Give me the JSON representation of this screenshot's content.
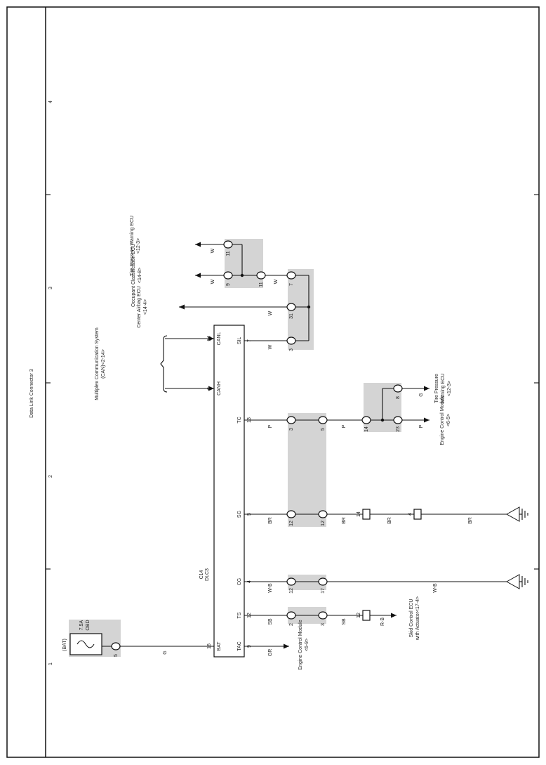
{
  "title": "Data Link Connector 3",
  "zones": [
    "1",
    "2",
    "3",
    "4"
  ],
  "connector": {
    "code": "C14",
    "name": "DLC3"
  },
  "fuse": {
    "source": "(BAT)",
    "rating": "7.5A",
    "name": "OBD"
  },
  "pins": [
    {
      "name": "BAT",
      "number": "16"
    },
    {
      "name": "TAC",
      "number": "9"
    },
    {
      "name": "TS",
      "number": "12"
    },
    {
      "name": "CG",
      "number": "4"
    },
    {
      "name": "SG",
      "number": "5"
    },
    {
      "name": "TC",
      "number": "13"
    },
    {
      "name": "CANH",
      "number": "6"
    },
    {
      "name": "CANL",
      "number": "14"
    },
    {
      "name": "SIL",
      "number": "7"
    }
  ],
  "circuits": [
    {
      "colors": [
        "G"
      ],
      "terminals": [
        "5"
      ]
    },
    {
      "colors": [
        "GR"
      ],
      "destinations": [
        [
          "Engine Control Module",
          "<6-9>"
        ]
      ]
    },
    {
      "colors": [
        "SB",
        "SB",
        "R-B"
      ],
      "terminals": [
        "2",
        "3",
        "12"
      ],
      "destinations": [
        [
          "Skid Control ECU",
          "with Actuator<17-4>"
        ]
      ]
    },
    {
      "colors": [
        "W-B",
        "W-B"
      ],
      "terminals": [
        "12",
        "17"
      ]
    },
    {
      "colors": [
        "BR",
        "BR",
        "BR",
        "BR"
      ],
      "terminals": [
        "12",
        "12",
        "14",
        "4"
      ]
    },
    {
      "colors": [
        "P",
        "P",
        "P",
        "G"
      ],
      "terminals": [
        "3",
        "5",
        "14",
        "23",
        "8"
      ],
      "destinations": [
        [
          "Engine Control Module",
          "<6-5>"
        ],
        [
          "Tire Pressure",
          "Warning ECU",
          "<12-3>"
        ]
      ]
    },
    {
      "destinations": [
        [
          "Multiplex Communication System",
          "(CAN)<2-14>"
        ]
      ]
    },
    {
      "colors": [
        "W"
      ],
      "terminals": [
        "3"
      ]
    },
    {
      "colors": [
        "W"
      ],
      "terminals": [
        "31"
      ],
      "destinations": [
        [
          "Center Airbag ECU",
          "<14-4>"
        ]
      ]
    },
    {
      "colors": [
        "W",
        "W"
      ],
      "terminals": [
        "7",
        "11",
        "9"
      ],
      "destinations": [
        [
          "Occupant Classification ECU",
          "<14-8>"
        ]
      ]
    },
    {
      "colors": [
        "W"
      ],
      "terminals": [
        "11"
      ],
      "destinations": [
        [
          "Tire Pressure Warning ECU",
          "<12-3>"
        ]
      ]
    }
  ]
}
